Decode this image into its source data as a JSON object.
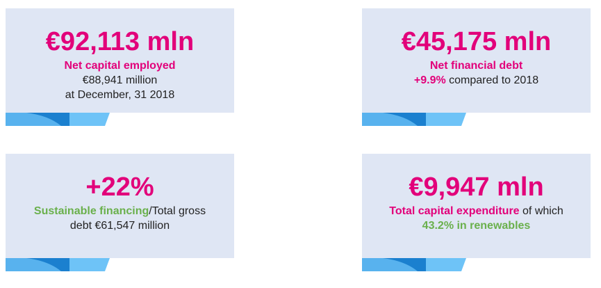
{
  "cards": [
    {
      "headline": "€92,113 mln",
      "lines": [
        [
          {
            "text": "Net capital employed",
            "color": "#e2007a"
          }
        ],
        [
          {
            "text": "€88,941 million"
          }
        ],
        [
          {
            "text": "at December, 31 2018"
          }
        ]
      ]
    },
    {
      "headline": "€45,175 mln",
      "lines": [
        [
          {
            "text": "Net financial debt",
            "color": "#e2007a"
          }
        ],
        [
          {
            "text": "+9.9%",
            "color": "#e2007a"
          },
          {
            "text": " compared to 2018"
          }
        ]
      ]
    },
    {
      "headline": "+22%",
      "lines": [
        [
          {
            "text": "Sustainable financing",
            "color": "#6ab04c"
          },
          {
            "text": "/Total gross"
          }
        ],
        [
          {
            "text": "debt €61,547 million"
          }
        ]
      ]
    },
    {
      "headline": "€9,947 mln",
      "lines": [
        [
          {
            "text": "Total capital expenditure",
            "color": "#e2007a"
          },
          {
            "text": " of which"
          }
        ],
        [
          {
            "text": "43.2% in renewables",
            "color": "#6ab04c"
          }
        ]
      ]
    }
  ]
}
